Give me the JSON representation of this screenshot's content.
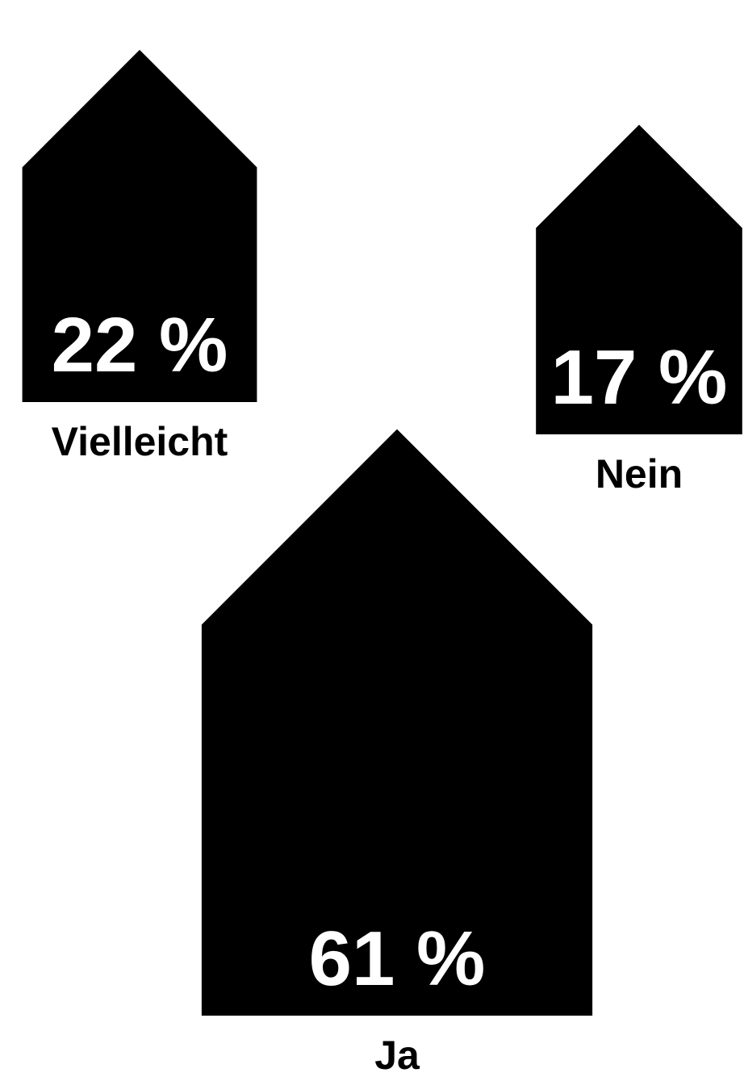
{
  "chart_data": {
    "type": "pictogram",
    "categories": [
      "Vielleicht",
      "Nein",
      "Ja"
    ],
    "values": [
      22,
      17,
      61
    ],
    "value_labels": [
      "22 %",
      "17 %",
      "61 %"
    ],
    "color": "#000000"
  }
}
